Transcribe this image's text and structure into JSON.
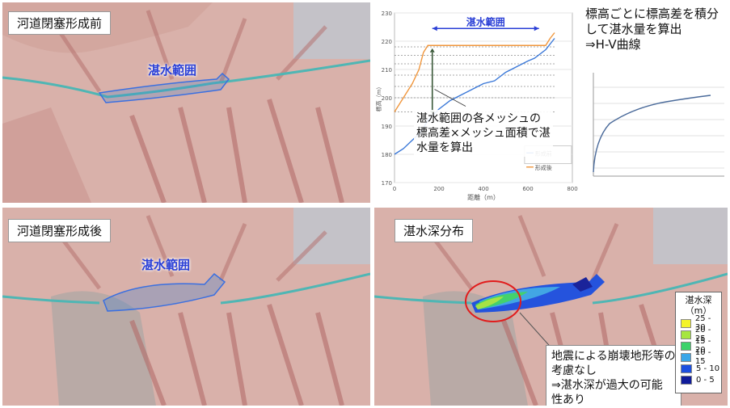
{
  "panels": {
    "before_title": "河道閉塞形成前",
    "after_title": "河道閉塞形成後",
    "depth_title": "湛水深分布",
    "before_area_label": "湛水範囲",
    "after_area_label": "湛水範囲"
  },
  "chart": {
    "range_label": "湛水範囲",
    "callout_lines": [
      "湛水範囲の各メッシュの",
      "標高差×メッシュ面積で湛",
      "水量を算出"
    ],
    "xlabel": "距離（m）",
    "ylabel": "標高（m）",
    "legend_before": "形成前",
    "legend_after": "形成後",
    "colors": {
      "before": "#3a78d8",
      "after": "#f0963c",
      "arrow": "#2a3fd6",
      "dark_arrow": "#3b5a3a"
    }
  },
  "chart_data": {
    "type": "line",
    "xlabel": "距離（m）",
    "ylabel": "標高（m）",
    "xlim": [
      0,
      800
    ],
    "ylim": [
      170,
      230
    ],
    "x_ticks": [
      0,
      200,
      400,
      600,
      800
    ],
    "y_ticks": [
      170,
      180,
      190,
      200,
      210,
      220,
      230
    ],
    "series": [
      {
        "name": "形成前",
        "x": [
          0,
          40,
          80,
          120,
          150,
          200,
          250,
          300,
          350,
          400,
          450,
          500,
          550,
          600,
          630,
          680,
          720
        ],
        "y": [
          180,
          182,
          185,
          188,
          192,
          196,
          199,
          201,
          203,
          205,
          206,
          209,
          211,
          213,
          214,
          217,
          221
        ]
      },
      {
        "name": "形成後",
        "x": [
          0,
          40,
          80,
          110,
          130,
          150,
          180,
          680,
          700,
          720
        ],
        "y": [
          195,
          200,
          205,
          210,
          216,
          218.5,
          218.5,
          218.5,
          221,
          223
        ]
      }
    ],
    "reference_lines_y": [
      195,
      200,
      204,
      208,
      212,
      215,
      218
    ]
  },
  "hv": {
    "text_lines": [
      "標高ごとに標高差を積分",
      "して湛水量を算出",
      "⇒H-V曲線"
    ]
  },
  "depth": {
    "callout_lines": [
      "地震による崩壊地形等の",
      "考慮なし",
      "⇒湛水深が過大の可能",
      "性あり"
    ],
    "legend_title_1": "湛水深",
    "legend_title_2": "（m）",
    "legend_items": [
      {
        "label": "25 - 30",
        "color": "#f4f42a"
      },
      {
        "label": "20 - 25",
        "color": "#a6e640"
      },
      {
        "label": "15 - 20",
        "color": "#3cd36a"
      },
      {
        "label": "10 - 15",
        "color": "#3aa6e8"
      },
      {
        "label": "5 - 10",
        "color": "#1c4fe0"
      },
      {
        "label": "0 - 5",
        "color": "#101c9a"
      }
    ]
  }
}
